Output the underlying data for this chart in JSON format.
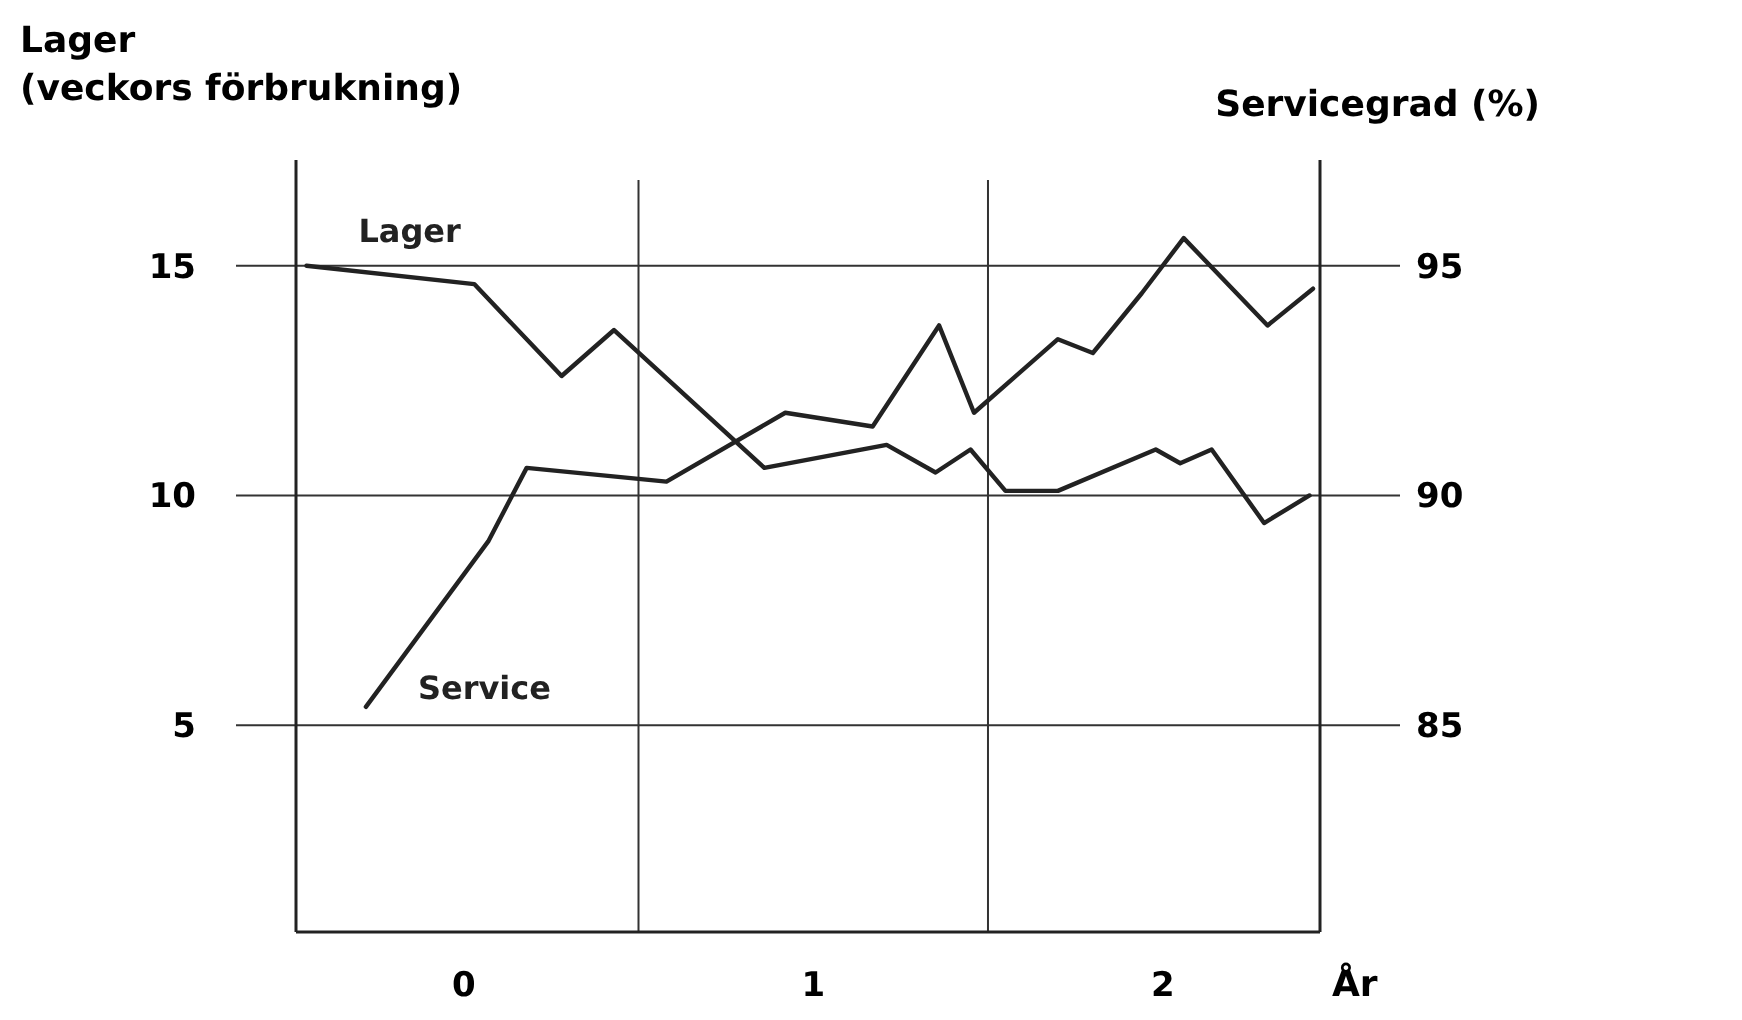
{
  "chart_data": {
    "type": "line",
    "ylabel": "Lager\n(veckors förbrukning)",
    "y2label": "Servicegrad (%)",
    "xlabel": "År",
    "x": [
      -0.45,
      0.03,
      0.28,
      0.43,
      0.86,
      1.21,
      1.35,
      1.45,
      1.55,
      1.7,
      1.98,
      2.05,
      2.14,
      2.29,
      2.42
    ],
    "xlim": [
      -0.48,
      2.45
    ],
    "xticks": [
      0,
      1,
      2
    ],
    "ylim": [
      0.5,
      17.3
    ],
    "yticks": [
      5,
      10,
      15
    ],
    "y2lim": [
      80.5,
      97.3
    ],
    "y2ticks": [
      85,
      90,
      95
    ],
    "grid": "y",
    "ref_lines": [
      {
        "axis": "x",
        "value": 0.5,
        "label": null
      },
      {
        "axis": "x",
        "value": 1.5,
        "label": null
      }
    ],
    "series": [
      {
        "name": "Lager",
        "color": "#222222",
        "values": [
          15.0,
          14.6,
          12.6,
          13.6,
          10.6,
          11.1,
          10.5,
          11.0,
          10.1,
          10.1,
          11.0,
          10.7,
          11.0,
          9.4,
          10.0
        ]
      },
      {
        "name": "Service",
        "color": "#222222",
        "axis": "y2",
        "x": [
          -0.28,
          0.07,
          0.18,
          0.58,
          0.92,
          1.17,
          1.36,
          1.46,
          1.7,
          1.8,
          1.94,
          2.06,
          2.3,
          2.43
        ],
        "values": [
          85.4,
          89.0,
          90.6,
          90.3,
          91.8,
          91.5,
          93.7,
          91.8,
          93.4,
          93.1,
          94.4,
          95.6,
          93.7,
          94.5
        ]
      }
    ]
  }
}
